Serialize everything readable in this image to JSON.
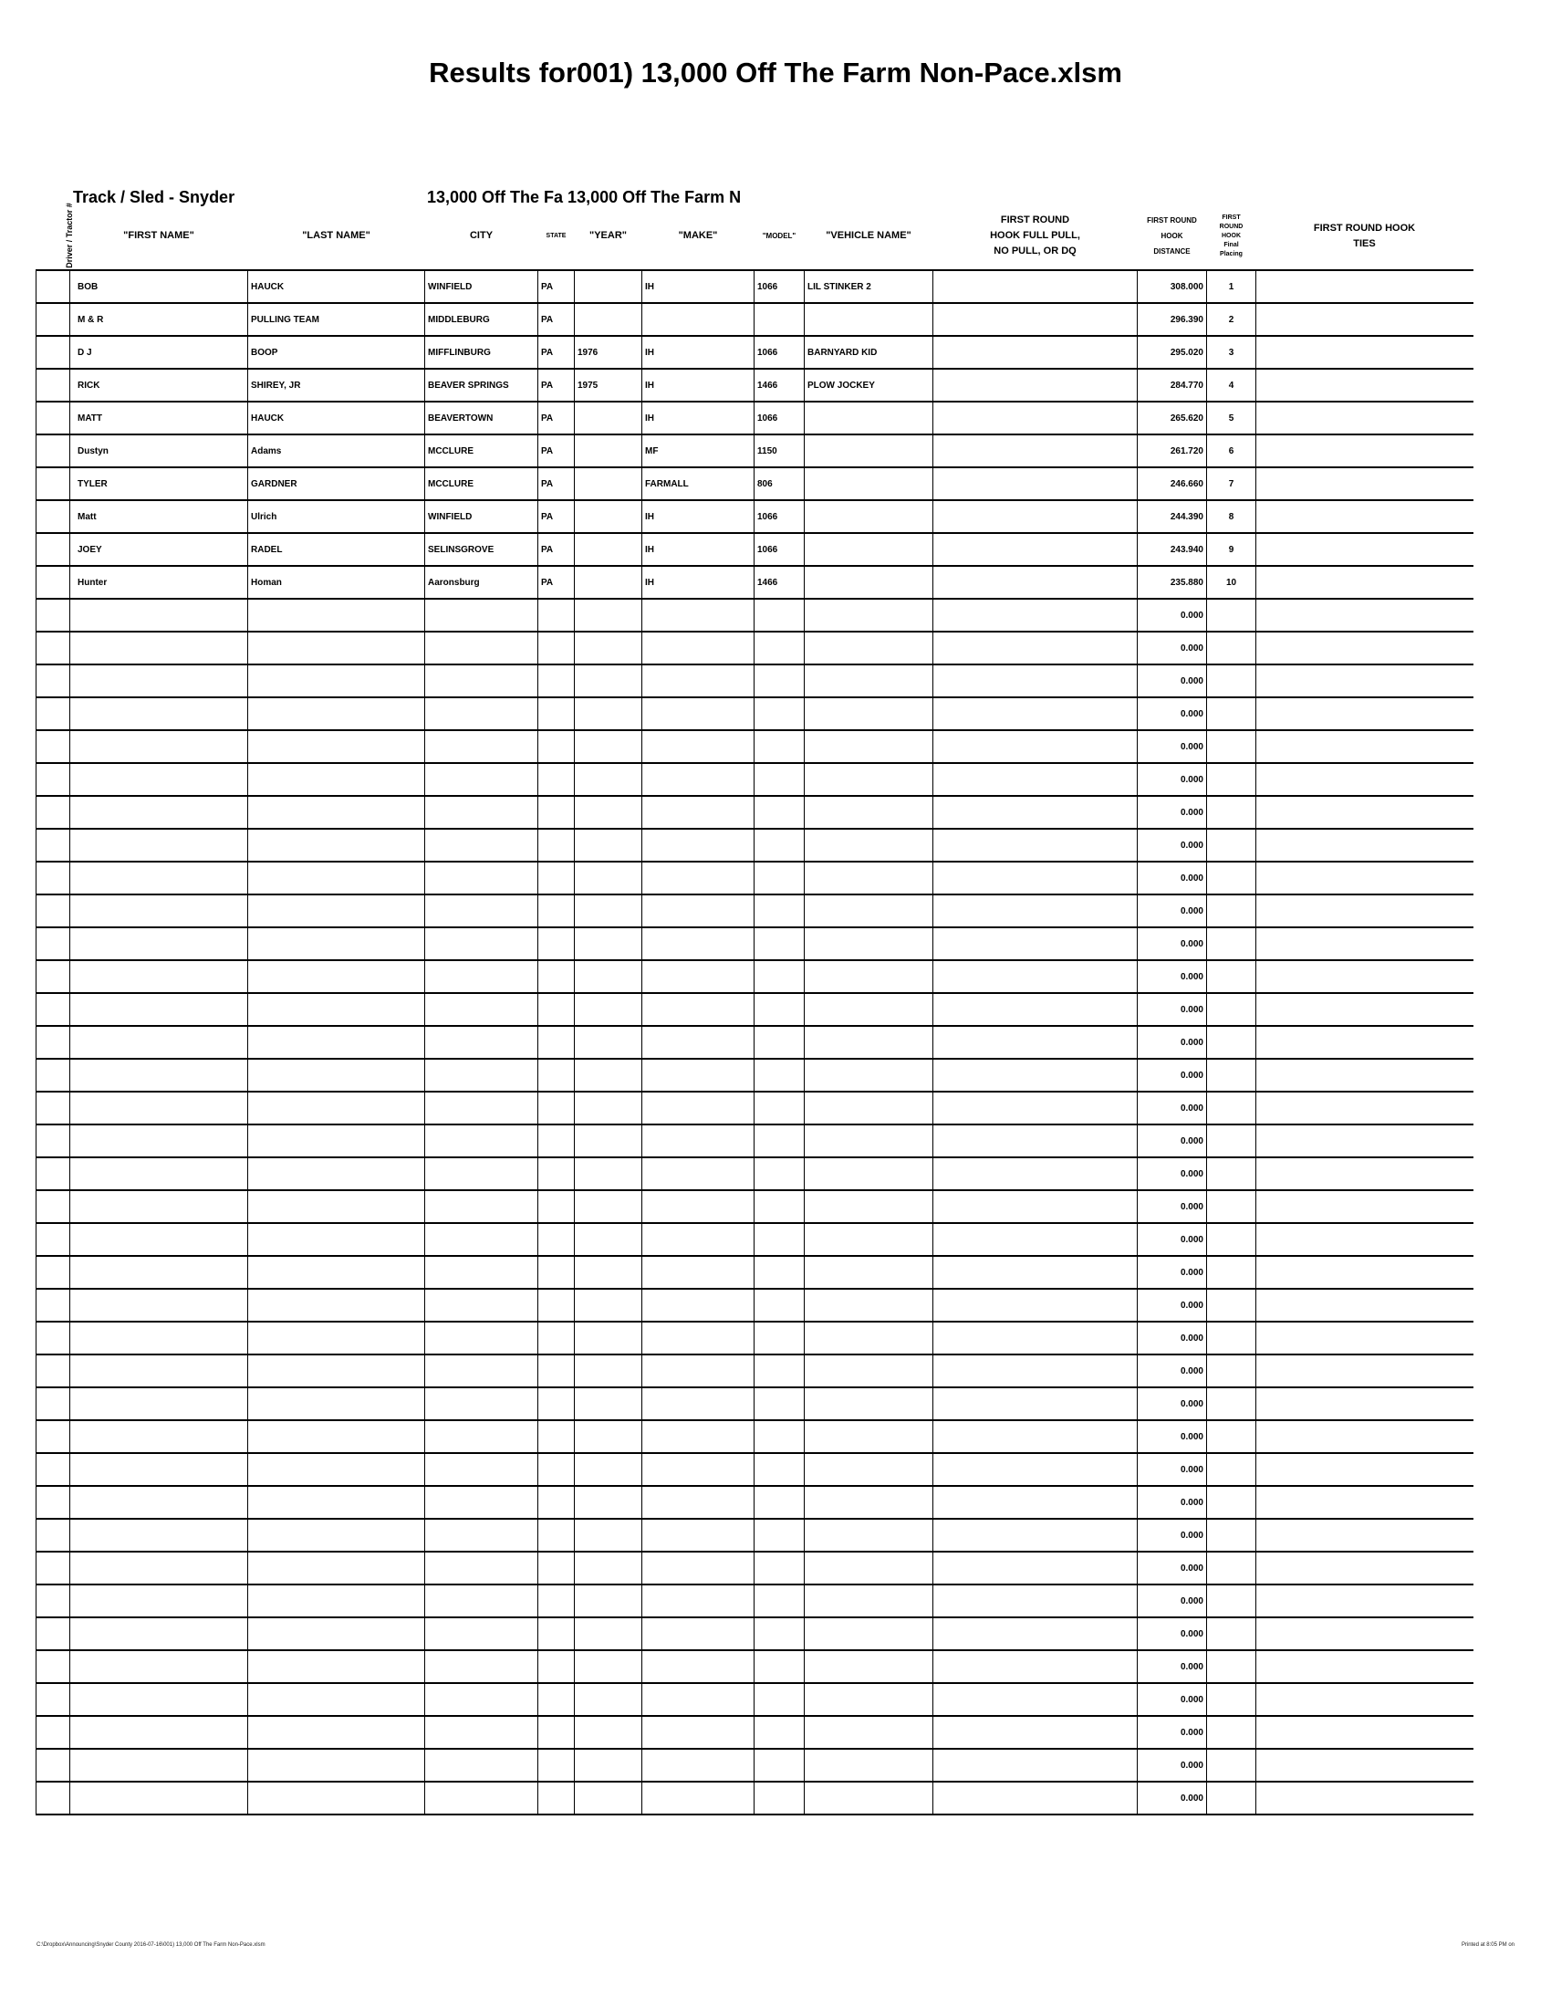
{
  "title": "Results for001) 13,000 Off The Farm Non-Pace.xlsm",
  "track": "Track / Sled - Snyder",
  "class_label": "13,000 Off The Fa 13,000 Off The Farm N",
  "headers": {
    "tractor": "Driver / Tractor #",
    "first_name": "\"FIRST NAME\"",
    "last_name": "\"LAST NAME\"",
    "city": "CITY",
    "state": "STATE",
    "year": "\"YEAR\"",
    "make": "\"MAKE\"",
    "model": "\"MODEL\"",
    "vehicle": "\"VEHICLE NAME\"",
    "full_pull": "FIRST ROUND HOOK FULL PULL, NO PULL, OR DQ",
    "distance": "FIRST ROUND HOOK DISTANCE",
    "placing": "FIRST ROUND HOOK Final Placing",
    "ties": "FIRST ROUND HOOK TIES"
  },
  "rows": [
    {
      "first": "BOB",
      "last": "HAUCK",
      "city": "WINFIELD",
      "state": "PA",
      "year": "",
      "make": "IH",
      "model": "1066",
      "vehicle": "LIL STINKER 2",
      "distance": "308.000",
      "place": "1"
    },
    {
      "first": "M & R",
      "last": "PULLING TEAM",
      "city": "MIDDLEBURG",
      "state": "PA",
      "year": "",
      "make": "",
      "model": "",
      "vehicle": "",
      "distance": "296.390",
      "place": "2"
    },
    {
      "first": "D J",
      "last": "BOOP",
      "city": "MIFFLINBURG",
      "state": "PA",
      "year": "1976",
      "make": "IH",
      "model": "1066",
      "vehicle": "BARNYARD KID",
      "distance": "295.020",
      "place": "3"
    },
    {
      "first": "RICK",
      "last": "SHIREY, JR",
      "city": "BEAVER SPRINGS",
      "state": "PA",
      "year": "1975",
      "make": "IH",
      "model": "1466",
      "vehicle": "PLOW JOCKEY",
      "distance": "284.770",
      "place": "4"
    },
    {
      "first": "MATT",
      "last": "HAUCK",
      "city": "BEAVERTOWN",
      "state": "PA",
      "year": "",
      "make": "IH",
      "model": "1066",
      "vehicle": "",
      "distance": "265.620",
      "place": "5"
    },
    {
      "first": "Dustyn",
      "last": "Adams",
      "city": "MCCLURE",
      "state": "PA",
      "year": "",
      "make": "MF",
      "model": "1150",
      "vehicle": "",
      "distance": "261.720",
      "place": "6"
    },
    {
      "first": "TYLER",
      "last": "GARDNER",
      "city": "MCCLURE",
      "state": "PA",
      "year": "",
      "make": "FARMALL",
      "model": "806",
      "vehicle": "",
      "distance": "246.660",
      "place": "7"
    },
    {
      "first": "Matt",
      "last": "Ulrich",
      "city": "WINFIELD",
      "state": "PA",
      "year": "",
      "make": "IH",
      "model": "1066",
      "vehicle": "",
      "distance": "244.390",
      "place": "8"
    },
    {
      "first": "JOEY",
      "last": "RADEL",
      "city": "SELINSGROVE",
      "state": "PA",
      "year": "",
      "make": "IH",
      "model": "1066",
      "vehicle": "",
      "distance": "243.940",
      "place": "9"
    },
    {
      "first": "Hunter",
      "last": "Homan",
      "city": "Aaronsburg",
      "state": "PA",
      "year": "",
      "make": "IH",
      "model": "1466",
      "vehicle": "",
      "distance": "235.880",
      "place": "10"
    }
  ],
  "empty_distance": "0.000",
  "empty_row_count": 37,
  "footer_left": "C:\\Dropbox\\Announcing\\Snyder County 2016-07-16\\001) 13,000 Off The Farm Non-Pace.xlsm",
  "footer_right": "Printed at 8:05 PM on"
}
